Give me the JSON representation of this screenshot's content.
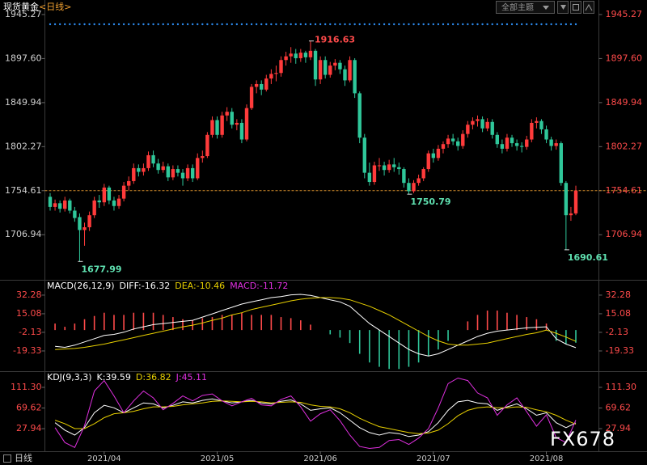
{
  "toolbar": {
    "theme_button": "全部主题"
  },
  "footer_period": "日线",
  "watermark": "FX678",
  "chart_data": {
    "type": "candlestick",
    "title": "现货黄金",
    "period": "<日线>",
    "up_color": "#ff3b3b",
    "down_color": "#2fc79a",
    "candles": [
      [
        1748,
        1752,
        1733,
        1737
      ],
      [
        1737,
        1745,
        1733,
        1741
      ],
      [
        1741,
        1744,
        1731,
        1735
      ],
      [
        1735,
        1748,
        1732,
        1744
      ],
      [
        1744,
        1746,
        1730,
        1733
      ],
      [
        1733,
        1737,
        1721,
        1725
      ],
      [
        1726,
        1730,
        1677.99,
        1712
      ],
      [
        1712,
        1720,
        1695,
        1715
      ],
      [
        1715,
        1732,
        1711,
        1728
      ],
      [
        1728,
        1748,
        1725,
        1744
      ],
      [
        1744,
        1750,
        1736,
        1742
      ],
      [
        1742,
        1762,
        1738,
        1758
      ],
      [
        1758,
        1760,
        1740,
        1744
      ],
      [
        1744,
        1748,
        1733,
        1738
      ],
      [
        1738,
        1750,
        1735,
        1746
      ],
      [
        1746,
        1764,
        1743,
        1760
      ],
      [
        1760,
        1770,
        1755,
        1765
      ],
      [
        1765,
        1784,
        1762,
        1779
      ],
      [
        1779,
        1783,
        1770,
        1775
      ],
      [
        1775,
        1784,
        1771,
        1779
      ],
      [
        1779,
        1797,
        1776,
        1793
      ],
      [
        1793,
        1798,
        1780,
        1784
      ],
      [
        1784,
        1789,
        1773,
        1777
      ],
      [
        1777,
        1786,
        1774,
        1781
      ],
      [
        1781,
        1784,
        1765,
        1769
      ],
      [
        1769,
        1782,
        1766,
        1778
      ],
      [
        1778,
        1782,
        1770,
        1774
      ],
      [
        1774,
        1778,
        1760,
        1768
      ],
      [
        1768,
        1783,
        1765,
        1779
      ],
      [
        1779,
        1783,
        1764,
        1768
      ],
      [
        1768,
        1795,
        1766,
        1790
      ],
      [
        1790,
        1798,
        1785,
        1792
      ],
      [
        1792,
        1818,
        1790,
        1815
      ],
      [
        1815,
        1835,
        1812,
        1831
      ],
      [
        1831,
        1835,
        1811,
        1815
      ],
      [
        1815,
        1840,
        1812,
        1836
      ],
      [
        1836,
        1845,
        1830,
        1840
      ],
      [
        1840,
        1844,
        1822,
        1826
      ],
      [
        1826,
        1832,
        1820,
        1828
      ],
      [
        1828,
        1832,
        1806,
        1810
      ],
      [
        1810,
        1848,
        1808,
        1844
      ],
      [
        1844,
        1870,
        1842,
        1867
      ],
      [
        1867,
        1874,
        1860,
        1870
      ],
      [
        1870,
        1874,
        1858,
        1864
      ],
      [
        1864,
        1880,
        1862,
        1876
      ],
      [
        1876,
        1886,
        1870,
        1881
      ],
      [
        1881,
        1890,
        1873,
        1882
      ],
      [
        1882,
        1900,
        1878,
        1896
      ],
      [
        1896,
        1905,
        1890,
        1900
      ],
      [
        1900,
        1910,
        1893,
        1903
      ],
      [
        1903,
        1908,
        1892,
        1898
      ],
      [
        1898,
        1908,
        1894,
        1904
      ],
      [
        1904,
        1906,
        1893,
        1899
      ],
      [
        1899,
        1916.63,
        1896,
        1906
      ],
      [
        1906,
        1908,
        1868,
        1875
      ],
      [
        1875,
        1900,
        1870,
        1896
      ],
      [
        1896,
        1900,
        1876,
        1880
      ],
      [
        1880,
        1894,
        1877,
        1890
      ],
      [
        1890,
        1897,
        1885,
        1893
      ],
      [
        1893,
        1896,
        1881,
        1886
      ],
      [
        1886,
        1890,
        1868,
        1874
      ],
      [
        1874,
        1900,
        1872,
        1896
      ],
      [
        1896,
        1898,
        1855,
        1860
      ],
      [
        1860,
        1862,
        1806,
        1812
      ],
      [
        1812,
        1816,
        1768,
        1774
      ],
      [
        1774,
        1785,
        1760,
        1764
      ],
      [
        1764,
        1786,
        1761,
        1782
      ],
      [
        1782,
        1790,
        1776,
        1782
      ],
      [
        1782,
        1786,
        1771,
        1777
      ],
      [
        1777,
        1788,
        1774,
        1783
      ],
      [
        1783,
        1790,
        1775,
        1780
      ],
      [
        1780,
        1785,
        1772,
        1778
      ],
      [
        1778,
        1780,
        1758,
        1763
      ],
      [
        1763,
        1768,
        1750.79,
        1754
      ],
      [
        1754,
        1766,
        1752,
        1763
      ],
      [
        1763,
        1772,
        1760,
        1768
      ],
      [
        1768,
        1780,
        1765,
        1778
      ],
      [
        1778,
        1798,
        1775,
        1795
      ],
      [
        1795,
        1800,
        1785,
        1790
      ],
      [
        1790,
        1804,
        1787,
        1800
      ],
      [
        1800,
        1808,
        1795,
        1805
      ],
      [
        1805,
        1815,
        1801,
        1811
      ],
      [
        1811,
        1816,
        1804,
        1808
      ],
      [
        1808,
        1812,
        1798,
        1803
      ],
      [
        1803,
        1820,
        1800,
        1816
      ],
      [
        1816,
        1830,
        1812,
        1826
      ],
      [
        1826,
        1834,
        1821,
        1830
      ],
      [
        1830,
        1836,
        1824,
        1832
      ],
      [
        1832,
        1835,
        1818,
        1822
      ],
      [
        1822,
        1833,
        1819,
        1829
      ],
      [
        1829,
        1832,
        1811,
        1815
      ],
      [
        1815,
        1818,
        1801,
        1805
      ],
      [
        1805,
        1810,
        1795,
        1800
      ],
      [
        1800,
        1816,
        1797,
        1812
      ],
      [
        1812,
        1815,
        1802,
        1806
      ],
      [
        1806,
        1810,
        1798,
        1803
      ],
      [
        1803,
        1807,
        1796,
        1802
      ],
      [
        1802,
        1814,
        1799,
        1810
      ],
      [
        1810,
        1832,
        1807,
        1828
      ],
      [
        1828,
        1834,
        1822,
        1830
      ],
      [
        1830,
        1832,
        1816,
        1821
      ],
      [
        1821,
        1825,
        1806,
        1810
      ],
      [
        1810,
        1813,
        1798,
        1803
      ],
      [
        1803,
        1810,
        1799,
        1806
      ],
      [
        1806,
        1808,
        1760,
        1763
      ],
      [
        1763,
        1765,
        1690.61,
        1728
      ],
      [
        1728,
        1737,
        1722,
        1730
      ],
      [
        1730,
        1760,
        1728,
        1754.61
      ]
    ],
    "ylim": [
      1659,
      1954
    ],
    "yticks": [
      1945.27,
      {
        "value": 1897.6,
        "label": "1897.60"
      },
      1849.94,
      1802.27,
      1754.61,
      1706.94
    ],
    "xticks": [
      {
        "value": 11,
        "label": "2021/04"
      },
      {
        "value": 34,
        "label": "2021/05"
      },
      {
        "value": 55,
        "label": "2021/06"
      },
      {
        "value": 78,
        "label": "2021/07"
      },
      {
        "value": 101,
        "label": "2021/08"
      }
    ],
    "macd": {
      "type": "line",
      "title": "MACD(26,12,9)",
      "x": [
        1,
        3,
        5,
        7,
        9,
        11,
        13,
        15,
        17,
        19,
        21,
        23,
        25,
        27,
        29,
        31,
        33,
        35,
        37,
        39,
        41,
        43,
        45,
        47,
        49,
        51,
        53,
        55,
        57,
        59,
        61,
        63,
        65,
        67,
        69,
        71,
        73,
        75,
        77,
        79,
        81,
        83,
        85,
        87,
        89,
        91,
        93,
        95,
        97,
        99,
        101,
        103,
        105,
        107
      ],
      "ylim": [
        -37.3,
        44.2
      ],
      "yticks": [
        32.28,
        15.08,
        -2.13,
        -19.33
      ],
      "series": [
        {
          "name": "MACD:",
          "type": "bar",
          "color": "#ff4a4a",
          "negative_color": "#2fc79a",
          "label_color": "#e030e0",
          "values": [
            6,
            3,
            6,
            10,
            13,
            16,
            14,
            14,
            16,
            16,
            16,
            14,
            12,
            10,
            9,
            11,
            12,
            14,
            14,
            16,
            14,
            14,
            14,
            12,
            11,
            9,
            5,
            0,
            -4,
            -7,
            -12,
            -22,
            -30,
            -34,
            -36,
            -36,
            -34,
            -30,
            -24,
            -18,
            -10,
            0,
            8,
            14,
            18,
            18,
            16,
            14,
            12,
            10,
            6,
            -10,
            -13,
            -11.72
          ]
        },
        {
          "name": "DIFF:",
          "color": "#ffffff",
          "values": [
            -15,
            -16,
            -14,
            -11,
            -8,
            -5,
            -4,
            -2,
            1,
            3,
            5,
            6,
            7,
            8,
            9,
            12,
            15,
            18,
            21,
            24,
            26,
            28,
            30,
            31,
            32.5,
            33,
            32,
            30,
            28,
            26,
            22,
            14,
            6,
            0,
            -6,
            -12,
            -18,
            -22,
            -24,
            -22,
            -18,
            -14,
            -10,
            -6,
            -3,
            -1,
            0,
            1,
            2,
            2.5,
            3,
            -8,
            -13,
            -16.32
          ]
        },
        {
          "name": "DEA:",
          "color": "#e8d000",
          "values": [
            -18,
            -17.5,
            -17,
            -16,
            -14.5,
            -13,
            -11,
            -9,
            -7,
            -5,
            -3,
            -1,
            1,
            3,
            4.5,
            6.5,
            9,
            11,
            14,
            16,
            19,
            21,
            23,
            25,
            27,
            28.5,
            29.5,
            30,
            30,
            29.5,
            28,
            25,
            22,
            18,
            14,
            9,
            4,
            -1,
            -6,
            -10,
            -13,
            -14,
            -14,
            -13,
            -12,
            -10,
            -8,
            -6,
            -4,
            -2.5,
            0,
            -3,
            -6.5,
            -10.46
          ]
        }
      ]
    },
    "kdj": {
      "type": "line",
      "title": "KDJ(9,3,3)",
      "x": [
        1,
        3,
        5,
        7,
        9,
        11,
        13,
        15,
        17,
        19,
        21,
        23,
        25,
        27,
        29,
        31,
        33,
        35,
        37,
        39,
        41,
        43,
        45,
        47,
        49,
        51,
        53,
        55,
        57,
        59,
        61,
        63,
        65,
        67,
        69,
        71,
        73,
        75,
        77,
        79,
        81,
        83,
        85,
        87,
        89,
        91,
        93,
        95,
        97,
        99,
        101,
        103,
        105,
        107
      ],
      "ylim": [
        -16,
        139
      ],
      "yticks": [
        {
          "value": 111.3,
          "label": "111.30"
        },
        69.62,
        27.94
      ],
      "series": [
        {
          "name": "K:",
          "color": "#ffffff",
          "values": [
            40,
            25,
            15,
            30,
            60,
            75,
            70,
            60,
            70,
            80,
            78,
            70,
            75,
            82,
            80,
            85,
            88,
            84,
            80,
            82,
            85,
            80,
            78,
            83,
            86,
            78,
            65,
            68,
            70,
            60,
            45,
            30,
            20,
            15,
            20,
            18,
            12,
            15,
            22,
            40,
            65,
            82,
            85,
            80,
            78,
            65,
            72,
            78,
            68,
            55,
            60,
            40,
            30,
            39.59
          ]
        },
        {
          "name": "D:",
          "color": "#e8d000",
          "values": [
            45,
            38,
            28,
            28,
            38,
            50,
            58,
            60,
            63,
            68,
            72,
            72,
            73,
            76,
            78,
            80,
            83,
            84,
            83,
            82,
            83,
            82,
            80,
            81,
            82,
            81,
            76,
            73,
            72,
            68,
            60,
            49,
            40,
            32,
            28,
            24,
            20,
            18,
            19,
            25,
            38,
            54,
            65,
            70,
            72,
            70,
            70,
            72,
            71,
            66,
            62,
            55,
            45,
            36.82
          ]
        },
        {
          "name": "J:",
          "color": "#e030e0",
          "values": [
            30,
            0,
            -10,
            34,
            104,
            125,
            94,
            60,
            84,
            104,
            90,
            66,
            79,
            94,
            84,
            95,
            98,
            84,
            74,
            82,
            89,
            76,
            74,
            87,
            94,
            72,
            43,
            58,
            66,
            44,
            15,
            -8,
            -12,
            -10,
            4,
            6,
            -4,
            9,
            28,
            70,
            119,
            130,
            125,
            100,
            90,
            55,
            76,
            90,
            62,
            33,
            56,
            10,
            0,
            45.11
          ]
        }
      ]
    }
  }
}
